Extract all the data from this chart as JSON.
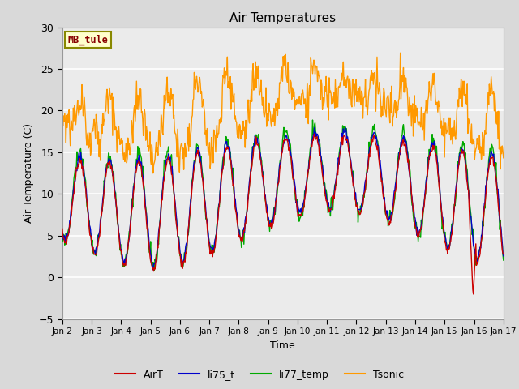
{
  "title": "Air Temperatures",
  "ylabel": "Air Temperature (C)",
  "xlabel": "Time",
  "site_label": "MB_tule",
  "xlim_days": [
    2,
    17
  ],
  "ylim": [
    -5,
    30
  ],
  "yticks": [
    -5,
    0,
    5,
    10,
    15,
    20,
    25,
    30
  ],
  "xtick_labels": [
    "Jan 2",
    "Jan 3",
    "Jan 4",
    "Jan 5",
    "Jan 6",
    "Jan 7",
    "Jan 8",
    "Jan 9",
    "Jan 10",
    "Jan 11",
    "Jan 12",
    "Jan 13",
    "Jan 14",
    "Jan 15",
    "Jan 16",
    "Jan 17"
  ],
  "colors": {
    "AirT": "#cc0000",
    "li75_t": "#0000cc",
    "li77_temp": "#00aa00",
    "Tsonic": "#ff9900"
  },
  "bg_color": "#d9d9d9",
  "plot_bg": "#ebebeb",
  "grid_color": "#ffffff",
  "lw": 1.0,
  "n_points": 720
}
